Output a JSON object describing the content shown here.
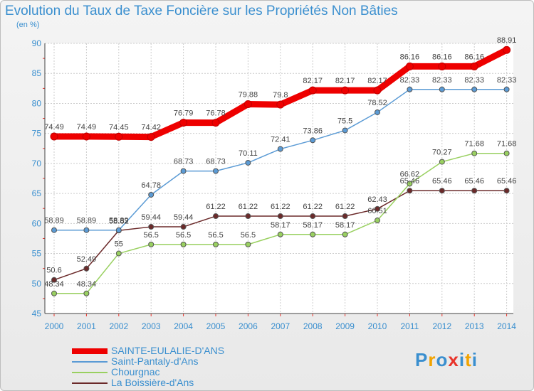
{
  "chart_data": {
    "type": "line",
    "title": "Evolution du Taux de Taxe Foncière sur les Propriétés Non Bâties",
    "subtitle": "(en %)",
    "x": [
      "2000",
      "2001",
      "2002",
      "2003",
      "2004",
      "2005",
      "2006",
      "2007",
      "2008",
      "2009",
      "2010",
      "2011",
      "2012",
      "2013",
      "2014"
    ],
    "ylim": [
      45,
      90
    ],
    "yticks": [
      45,
      50,
      55,
      60,
      65,
      70,
      75,
      80,
      85,
      90
    ],
    "grid": true,
    "series": [
      {
        "name": "SAINTE-EULALIE-D'ANS",
        "color": "#ee0000",
        "values": [
          74.49,
          74.49,
          74.45,
          74.42,
          76.79,
          76.78,
          79.88,
          79.8,
          82.17,
          82.17,
          82.17,
          86.16,
          86.16,
          86.16,
          88.91
        ],
        "labels": [
          "74.49",
          "74.49",
          "74.45",
          "74.42",
          "76.79",
          "76.78",
          "79.88",
          "79.8",
          "82.17",
          "82.17",
          "82.17",
          "86.16",
          "86.16",
          "86.16",
          "88.91"
        ]
      },
      {
        "name": "Saint-Pantaly-d'Ans",
        "color": "#5b9bd5",
        "values": [
          58.89,
          58.89,
          58.89,
          64.78,
          68.73,
          68.73,
          70.11,
          72.41,
          73.86,
          75.5,
          78.52,
          82.33,
          82.33,
          82.33,
          82.33
        ],
        "labels": [
          "58.89",
          "58.89",
          "58.89",
          "64.78",
          "68.73",
          "68.73",
          "70.11",
          "72.41",
          "73.86",
          "75.5",
          "78.52",
          "82.33",
          "82.33",
          "82.33",
          "82.33"
        ]
      },
      {
        "name": "Chourgnac",
        "color": "#99d060",
        "values": [
          48.34,
          48.34,
          55,
          56.5,
          56.5,
          56.5,
          56.5,
          58.17,
          58.17,
          58.17,
          60.51,
          66.62,
          70.27,
          71.68,
          71.68
        ],
        "labels": [
          "48.34",
          "48.34",
          "55",
          "56.5",
          "56.5",
          "56.5",
          "56.5",
          "58.17",
          "58.17",
          "58.17",
          "60.51",
          "66.62",
          "70.27",
          "71.68",
          "71.68"
        ]
      },
      {
        "name": "La Boissière-d'Ans",
        "color": "#6b2a2a",
        "values": [
          50.6,
          52.49,
          58.82,
          59.44,
          59.44,
          61.22,
          61.22,
          61.22,
          61.22,
          61.22,
          62.43,
          65.46,
          65.46,
          65.46,
          65.46
        ],
        "labels": [
          "50.6",
          "52.49",
          "58.82",
          "59.44",
          "59.44",
          "61.22",
          "61.22",
          "61.22",
          "61.22",
          "61.22",
          "62.43",
          "65.46",
          "65.46",
          "65.46",
          "65.46"
        ]
      }
    ]
  },
  "logo": {
    "letters": [
      "P",
      "r",
      "o",
      "x",
      "i",
      "t",
      "i"
    ],
    "colors": [
      "#3a8fcf",
      "#f2a300",
      "#3a8fcf",
      "#e8332a",
      "#3a8fcf",
      "#f2a300",
      "#3a8fcf"
    ]
  }
}
